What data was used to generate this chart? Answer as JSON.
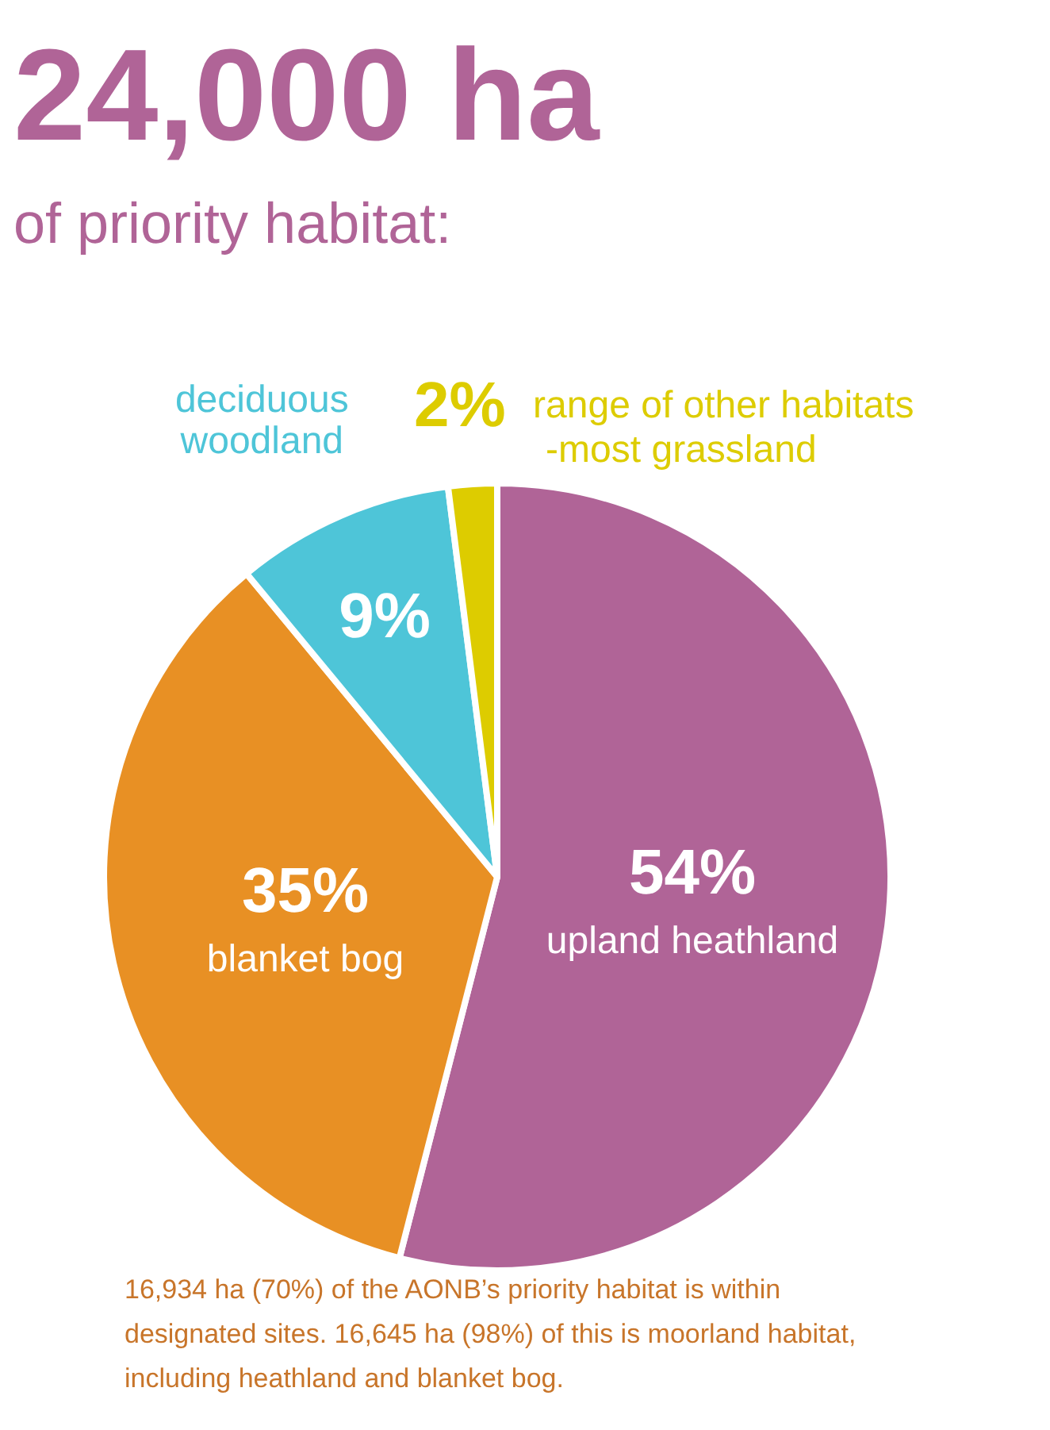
{
  "chart_data": {
    "type": "pie",
    "title": "24,000 ha",
    "subtitle": "of priority habitat:",
    "categories": [
      "upland heathland",
      "blanket bog",
      "deciduous woodland",
      "range of other habitats -most grassland"
    ],
    "values": [
      54,
      35,
      9,
      2
    ],
    "value_labels": [
      "54%",
      "35%",
      "9%",
      "2%"
    ],
    "colors": [
      "#b06497",
      "#e89024",
      "#4ec5d8",
      "#ddcc00"
    ],
    "annotations": [
      "16,934 ha (70%) of the AONB’s priority habitat is within designated sites.  16,645 ha (98%) of this is moorland habitat, including heathland and blanket bog."
    ]
  }
}
